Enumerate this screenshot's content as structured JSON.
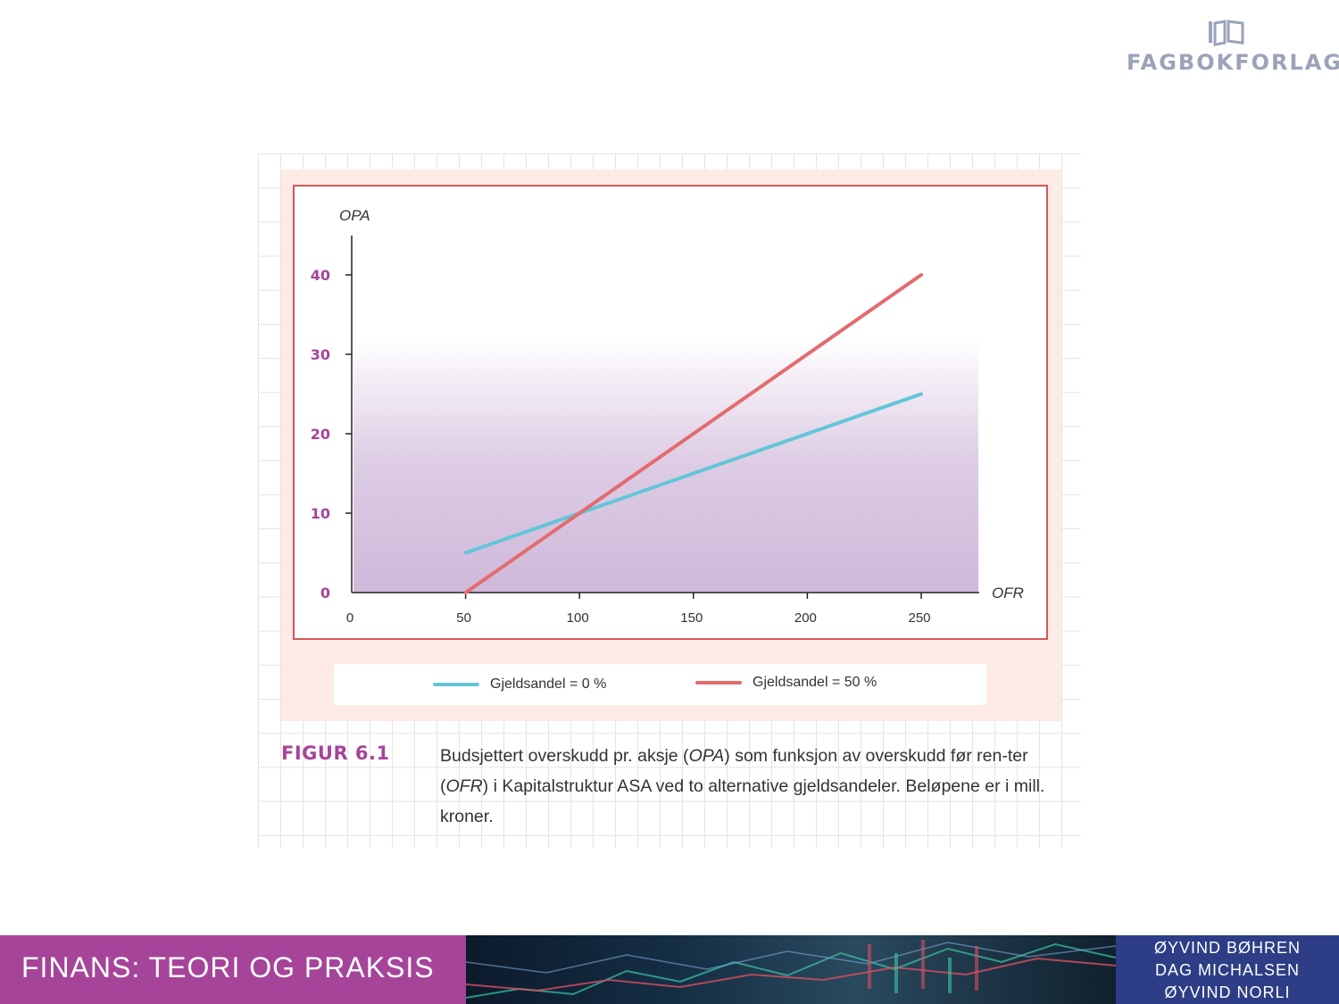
{
  "publisher": {
    "name": "FAGBOKFORLAGET"
  },
  "figure": {
    "label": "FIGUR 6.1",
    "caption_parts": [
      "Budsjettert overskudd pr. aksje (",
      "OPA",
      ") som funksjon av overskudd før ren-ter (",
      "OFR",
      ") i Kapitalstruktur ASA ved to alternative gjeldsandeler. Beløpene er i mill. kroner."
    ]
  },
  "chart_data": {
    "type": "line",
    "xlabel": "OFR",
    "ylabel": "OPA",
    "xlim": [
      0,
      275
    ],
    "ylim": [
      0,
      40
    ],
    "xticks": [
      0,
      50,
      100,
      150,
      200,
      250
    ],
    "yticks": [
      0,
      10,
      20,
      30,
      40
    ],
    "grid": false,
    "legend": "bottom",
    "series": [
      {
        "name": "Gjeldsandel = 0 %",
        "color": "#62c6d8",
        "x": [
          50,
          250
        ],
        "y": [
          5,
          25
        ]
      },
      {
        "name": "Gjeldsandel = 50 %",
        "color": "#e26c6f",
        "x": [
          50,
          250
        ],
        "y": [
          0,
          40
        ]
      }
    ]
  },
  "footer": {
    "book_title": "FINANS: TEORI OG PRAKSIS",
    "authors": [
      "ØYVIND BØHREN",
      "DAG MICHALSEN",
      "ØYVIND NORLI"
    ]
  },
  "colors": {
    "accent": "#a6449a",
    "frame": "#d7565c",
    "author_band": "#2d3e86",
    "tick_label": "#a6449a"
  }
}
